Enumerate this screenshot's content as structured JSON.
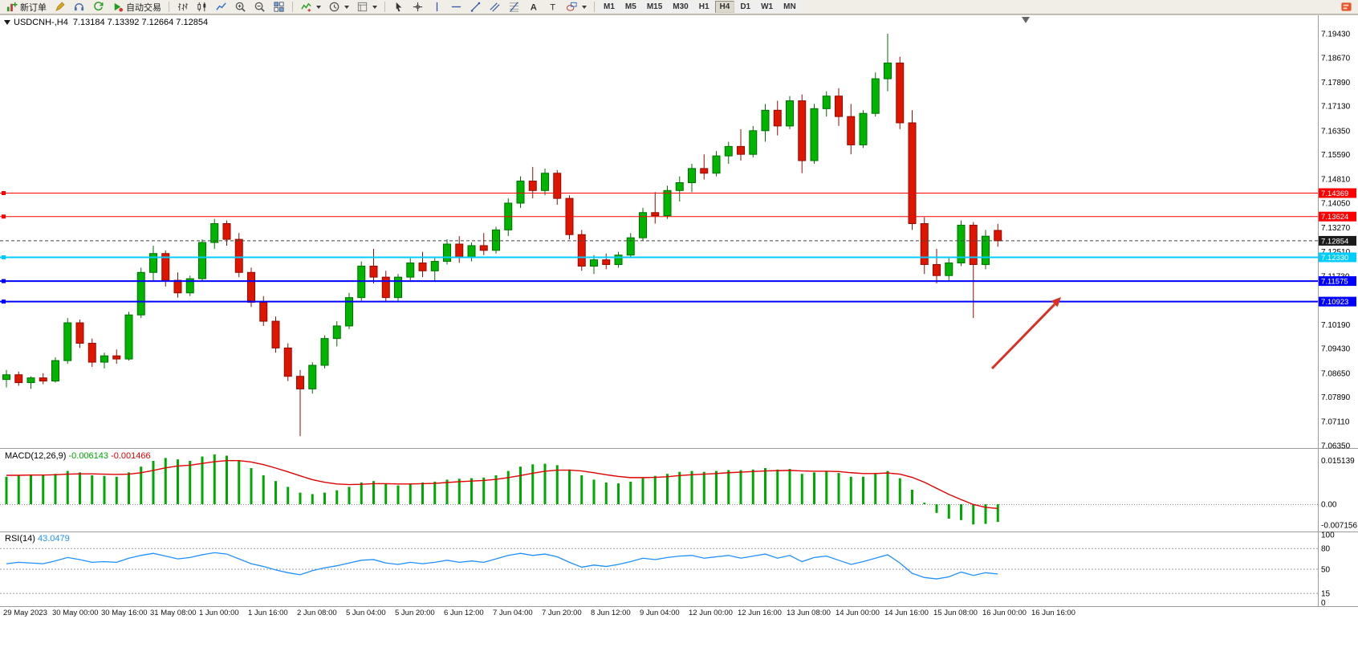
{
  "toolbar": {
    "new_order_label": "新订单",
    "autotrading_label": "自动交易",
    "timeframes": [
      "M1",
      "M5",
      "M15",
      "M30",
      "H1",
      "H4",
      "D1",
      "W1",
      "MN"
    ],
    "active_timeframe": "H4",
    "text_tool_glyph": "A",
    "label_tool_glyph": "T"
  },
  "chart": {
    "title_symbol": "USDCNH-,H4",
    "title_ohlc": "7.13184 7.13392 7.12664 7.12854"
  },
  "indicators": {
    "macd_name": "MACD(12,26,9)",
    "macd_value": "-0.006143",
    "macd_signal": "-0.001466",
    "rsi_name": "RSI(14)",
    "rsi_value": "43.0479"
  },
  "colors": {
    "up": "#00b400",
    "up_border": "#007000",
    "down": "#e01500",
    "down_border": "#900d00",
    "macd_hist": "#00a800",
    "macd_signal": "#e00000",
    "rsi": "#1e90ff",
    "current_badge": "#1b1b1b",
    "arrow": "#d93025"
  },
  "chart_data": {
    "type": "candlestick",
    "symbol": "USDCNH-",
    "timeframe": "H4",
    "ohlc_display": {
      "open": 7.13184,
      "high": 7.13392,
      "low": 7.12664,
      "close": 7.12854
    },
    "price_scale": {
      "max": 7.1943,
      "min": 7.0635
    },
    "price_axis": [
      "7.19430",
      "7.18670",
      "7.17890",
      "7.17130",
      "7.16350",
      "7.15590",
      "7.14810",
      "7.14050",
      "7.13270",
      "7.12510",
      "7.11730",
      "7.10190",
      "7.09430",
      "7.08650",
      "7.07890",
      "7.07110",
      "7.06350"
    ],
    "time_axis": [
      "29 May 2023",
      "30 May 00:00",
      "30 May 16:00",
      "31 May 08:00",
      "1 Jun 00:00",
      "1 Jun 16:00",
      "2 Jun 08:00",
      "5 Jun 04:00",
      "5 Jun 20:00",
      "6 Jun 12:00",
      "7 Jun 04:00",
      "7 Jun 20:00",
      "8 Jun 12:00",
      "9 Jun 04:00",
      "12 Jun 00:00",
      "12 Jun 16:00",
      "13 Jun 08:00",
      "14 Jun 00:00",
      "14 Jun 16:00",
      "15 Jun 08:00",
      "16 Jun 00:00",
      "16 Jun 16:00"
    ],
    "candles": [
      [
        7.0845,
        7.0875,
        7.082,
        7.086
      ],
      [
        7.086,
        7.087,
        7.0825,
        7.0835
      ],
      [
        7.0835,
        7.0855,
        7.0815,
        7.085
      ],
      [
        7.085,
        7.0865,
        7.083,
        7.084
      ],
      [
        7.084,
        7.0915,
        7.0835,
        7.0905
      ],
      [
        7.0905,
        7.104,
        7.0895,
        7.1025
      ],
      [
        7.1025,
        7.1035,
        7.0945,
        7.096
      ],
      [
        7.096,
        7.0975,
        7.0885,
        7.09
      ],
      [
        7.09,
        7.093,
        7.088,
        7.092
      ],
      [
        7.092,
        7.094,
        7.0895,
        7.091
      ],
      [
        7.091,
        7.106,
        7.0905,
        7.105
      ],
      [
        7.105,
        7.12,
        7.104,
        7.1185
      ],
      [
        7.1185,
        7.127,
        7.116,
        7.1245
      ],
      [
        7.1245,
        7.1255,
        7.114,
        7.116
      ],
      [
        7.116,
        7.1185,
        7.1105,
        7.112
      ],
      [
        7.112,
        7.1175,
        7.111,
        7.1165
      ],
      [
        7.1165,
        7.129,
        7.1155,
        7.128
      ],
      [
        7.128,
        7.1355,
        7.126,
        7.134
      ],
      [
        7.134,
        7.135,
        7.127,
        7.129
      ],
      [
        7.129,
        7.131,
        7.117,
        7.1185
      ],
      [
        7.1185,
        7.12,
        7.1075,
        7.109
      ],
      [
        7.109,
        7.111,
        7.1015,
        7.103
      ],
      [
        7.103,
        7.1045,
        7.093,
        7.0945
      ],
      [
        7.0945,
        7.096,
        7.084,
        7.0855
      ],
      [
        7.0855,
        7.0875,
        7.0665,
        7.0815
      ],
      [
        7.0815,
        7.09,
        7.08,
        7.089
      ],
      [
        7.089,
        7.0985,
        7.088,
        7.0975
      ],
      [
        7.0975,
        7.103,
        7.095,
        7.1015
      ],
      [
        7.1015,
        7.112,
        7.1005,
        7.1105
      ],
      [
        7.1105,
        7.122,
        7.1095,
        7.1205
      ],
      [
        7.1205,
        7.126,
        7.115,
        7.117
      ],
      [
        7.117,
        7.119,
        7.109,
        7.1105
      ],
      [
        7.1105,
        7.118,
        7.1095,
        7.117
      ],
      [
        7.117,
        7.123,
        7.116,
        7.1215
      ],
      [
        7.1215,
        7.125,
        7.117,
        7.119
      ],
      [
        7.119,
        7.123,
        7.1155,
        7.122
      ],
      [
        7.122,
        7.129,
        7.121,
        7.1275
      ],
      [
        7.1275,
        7.13,
        7.1215,
        7.1235
      ],
      [
        7.1235,
        7.128,
        7.122,
        7.127
      ],
      [
        7.127,
        7.131,
        7.124,
        7.1255
      ],
      [
        7.1255,
        7.133,
        7.1245,
        7.132
      ],
      [
        7.132,
        7.142,
        7.13,
        7.1405
      ],
      [
        7.1405,
        7.149,
        7.139,
        7.1475
      ],
      [
        7.1475,
        7.152,
        7.142,
        7.1445
      ],
      [
        7.1445,
        7.1515,
        7.143,
        7.15
      ],
      [
        7.15,
        7.151,
        7.14,
        7.142
      ],
      [
        7.142,
        7.143,
        7.129,
        7.1305
      ],
      [
        7.1305,
        7.132,
        7.119,
        7.1205
      ],
      [
        7.1205,
        7.124,
        7.118,
        7.1225
      ],
      [
        7.1225,
        7.1245,
        7.1195,
        7.121
      ],
      [
        7.121,
        7.125,
        7.12,
        7.124
      ],
      [
        7.124,
        7.131,
        7.123,
        7.1295
      ],
      [
        7.1295,
        7.139,
        7.1285,
        7.1375
      ],
      [
        7.1375,
        7.144,
        7.134,
        7.1365
      ],
      [
        7.1365,
        7.146,
        7.1355,
        7.1445
      ],
      [
        7.1445,
        7.149,
        7.141,
        7.147
      ],
      [
        7.147,
        7.153,
        7.144,
        7.1515
      ],
      [
        7.1515,
        7.156,
        7.148,
        7.15
      ],
      [
        7.15,
        7.157,
        7.149,
        7.1555
      ],
      [
        7.1555,
        7.16,
        7.153,
        7.1585
      ],
      [
        7.1585,
        7.164,
        7.154,
        7.156
      ],
      [
        7.156,
        7.165,
        7.155,
        7.1635
      ],
      [
        7.1635,
        7.172,
        7.16,
        7.17
      ],
      [
        7.17,
        7.173,
        7.162,
        7.165
      ],
      [
        7.165,
        7.1745,
        7.164,
        7.173
      ],
      [
        7.173,
        7.175,
        7.15,
        7.154
      ],
      [
        7.154,
        7.172,
        7.153,
        7.1705
      ],
      [
        7.1705,
        7.176,
        7.168,
        7.1745
      ],
      [
        7.1745,
        7.177,
        7.165,
        7.168
      ],
      [
        7.168,
        7.172,
        7.156,
        7.159
      ],
      [
        7.159,
        7.17,
        7.158,
        7.169
      ],
      [
        7.169,
        7.182,
        7.168,
        7.18
      ],
      [
        7.18,
        7.1943,
        7.176,
        7.185
      ],
      [
        7.185,
        7.187,
        7.164,
        7.166
      ],
      [
        7.166,
        7.17,
        7.132,
        7.134
      ],
      [
        7.134,
        7.136,
        7.118,
        7.121
      ],
      [
        7.121,
        7.126,
        7.115,
        7.1175
      ],
      [
        7.1175,
        7.123,
        7.116,
        7.1215
      ],
      [
        7.1215,
        7.135,
        7.1205,
        7.1335
      ],
      [
        7.1335,
        7.1345,
        7.104,
        7.121
      ],
      [
        7.121,
        7.132,
        7.1195,
        7.13
      ],
      [
        7.13184,
        7.13392,
        7.12664,
        7.12854
      ]
    ],
    "levels": [
      {
        "price": 7.14369,
        "label": "7.14369",
        "color": "#ff0000",
        "width": 1
      },
      {
        "price": 7.13624,
        "label": "7.13624",
        "color": "#ff0000",
        "width": 1
      },
      {
        "price": 7.1233,
        "label": "7.12330",
        "color": "#00ccff",
        "width": 2
      },
      {
        "price": 7.11575,
        "label": "7.11575",
        "color": "#0000ff",
        "width": 2
      },
      {
        "price": 7.10923,
        "label": "7.10923",
        "color": "#0000ff",
        "width": 2
      }
    ],
    "current_price": {
      "value": 7.12854,
      "label": "7.12854"
    },
    "macd": {
      "params": "12,26,9",
      "value": -0.006143,
      "signal_value": -0.001466,
      "axis_labels": [
        {
          "value": 0.015139,
          "label": "0.015139"
        },
        {
          "value": 0,
          "label": "0.00"
        },
        {
          "value": -0.007156,
          "label": "-0.007156"
        }
      ],
      "histogram": [
        0.0095,
        0.01,
        0.0103,
        0.01,
        0.0105,
        0.0115,
        0.011,
        0.01,
        0.0098,
        0.0095,
        0.011,
        0.013,
        0.015,
        0.016,
        0.0155,
        0.015,
        0.0165,
        0.0172,
        0.0168,
        0.015,
        0.0125,
        0.01,
        0.008,
        0.006,
        0.004,
        0.0035,
        0.004,
        0.0048,
        0.006,
        0.0075,
        0.008,
        0.007,
        0.0065,
        0.007,
        0.0075,
        0.0078,
        0.0085,
        0.0088,
        0.009,
        0.0092,
        0.01,
        0.0115,
        0.013,
        0.0138,
        0.014,
        0.0135,
        0.012,
        0.01,
        0.0085,
        0.0075,
        0.0072,
        0.0078,
        0.009,
        0.0098,
        0.0105,
        0.0112,
        0.0115,
        0.0112,
        0.0115,
        0.0118,
        0.0118,
        0.012,
        0.0125,
        0.012,
        0.0122,
        0.0105,
        0.011,
        0.0115,
        0.0108,
        0.0095,
        0.0095,
        0.0105,
        0.0115,
        0.009,
        0.005,
        0.0005,
        -0.003,
        -0.005,
        -0.0055,
        -0.007,
        -0.0068,
        -0.006143
      ],
      "signal": [
        0.01,
        0.01,
        0.0101,
        0.0101,
        0.0102,
        0.0104,
        0.0105,
        0.0105,
        0.0104,
        0.0103,
        0.0104,
        0.0109,
        0.0117,
        0.0126,
        0.0132,
        0.0135,
        0.0141,
        0.0147,
        0.0151,
        0.0151,
        0.0146,
        0.0137,
        0.0125,
        0.0112,
        0.0098,
        0.0085,
        0.0076,
        0.007,
        0.0068,
        0.0069,
        0.0071,
        0.0071,
        0.007,
        0.007,
        0.0071,
        0.0072,
        0.0075,
        0.0078,
        0.008,
        0.0082,
        0.0086,
        0.0092,
        0.0099,
        0.0107,
        0.0114,
        0.0118,
        0.0118,
        0.0115,
        0.0109,
        0.0102,
        0.0096,
        0.0092,
        0.0092,
        0.0093,
        0.0095,
        0.0099,
        0.0102,
        0.0104,
        0.0106,
        0.0109,
        0.0111,
        0.0113,
        0.0115,
        0.0116,
        0.0117,
        0.0115,
        0.0114,
        0.0114,
        0.0113,
        0.0109,
        0.0106,
        0.0106,
        0.0108,
        0.0104,
        0.0093,
        0.0076,
        0.0055,
        0.0034,
        0.0016,
        -0.0001,
        -0.0011,
        -0.001466
      ]
    },
    "rsi": {
      "period": 14,
      "value": 43.0479,
      "levels": [
        80,
        50,
        15
      ],
      "axis_labels": [
        {
          "value": 100,
          "label": "100"
        },
        {
          "value": 80,
          "label": "80"
        },
        {
          "value": 50,
          "label": "50"
        },
        {
          "value": 15,
          "label": "15"
        },
        {
          "value": 0,
          "label": "0"
        }
      ],
      "values": [
        58,
        60,
        59,
        58,
        62,
        67,
        64,
        60,
        61,
        60,
        66,
        70,
        73,
        69,
        65,
        67,
        71,
        74,
        72,
        65,
        58,
        54,
        49,
        45,
        42,
        48,
        52,
        55,
        59,
        63,
        64,
        59,
        57,
        60,
        58,
        60,
        63,
        60,
        62,
        60,
        65,
        70,
        73,
        70,
        72,
        68,
        60,
        53,
        56,
        54,
        57,
        61,
        66,
        64,
        67,
        69,
        70,
        66,
        68,
        70,
        66,
        69,
        72,
        66,
        70,
        61,
        67,
        69,
        63,
        57,
        61,
        66,
        71,
        59,
        44,
        38,
        36,
        39,
        46,
        41,
        45,
        43.0479
      ]
    }
  }
}
